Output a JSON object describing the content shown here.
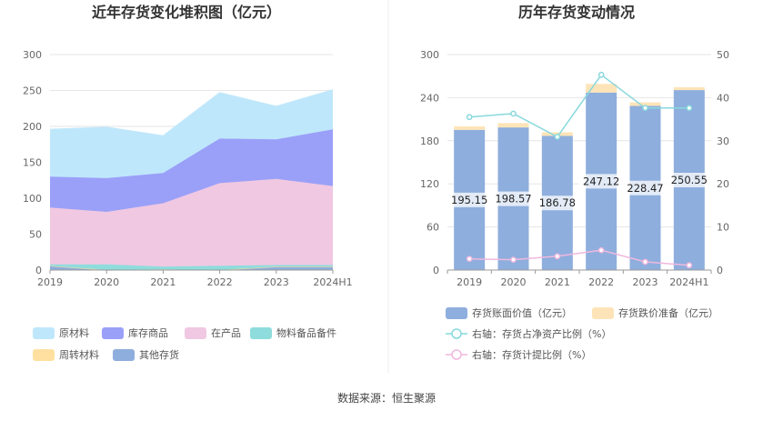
{
  "chart_data": [
    {
      "type": "area",
      "title": "近年存货变化堆积图（亿元）",
      "categories": [
        "2019",
        "2020",
        "2021",
        "2022",
        "2023",
        "2024H1"
      ],
      "ylim": [
        0,
        300
      ],
      "yticks": [
        0,
        50,
        100,
        150,
        200,
        250,
        300
      ],
      "grid": true,
      "legend_position": "bottom-left",
      "series": [
        {
          "name": "其他存货",
          "color": "#8eaedd",
          "values": [
            6,
            0,
            1,
            0,
            5,
            5
          ]
        },
        {
          "name": "周转材料",
          "color": "#ffe0a0",
          "values": [
            0,
            0,
            0,
            0,
            0,
            0
          ]
        },
        {
          "name": "物料备品备件",
          "color": "#8fdcdc",
          "values": [
            2,
            8,
            4,
            6,
            2,
            2
          ]
        },
        {
          "name": "在产品",
          "color": "#f0c8e2",
          "values": [
            79,
            73,
            88,
            115,
            120,
            110
          ]
        },
        {
          "name": "库存商品",
          "color": "#9aa0f8",
          "values": [
            43,
            47,
            42,
            62,
            55,
            79
          ]
        },
        {
          "name": "原材料",
          "color": "#bfe7fb",
          "values": [
            66,
            71,
            52,
            64,
            46,
            55
          ]
        }
      ],
      "legend": [
        "原材料",
        "库存商品",
        "在产品",
        "物料备品备件",
        "周转材料",
        "其他存货"
      ]
    },
    {
      "type": "bar",
      "title": "历年存货变动情况",
      "categories": [
        "2019",
        "2020",
        "2021",
        "2022",
        "2023",
        "2024H1"
      ],
      "ylim": [
        0,
        300
      ],
      "yticks": [
        0,
        60,
        120,
        180,
        240,
        300
      ],
      "y2lim": [
        0,
        50
      ],
      "y2ticks": [
        0,
        10,
        20,
        30,
        40,
        50
      ],
      "grid": true,
      "legend_position": "bottom",
      "series": [
        {
          "name": "存货账面价值（亿元）",
          "color": "#8eaedd",
          "values": [
            195.15,
            198.57,
            186.78,
            247.12,
            228.47,
            250.55
          ],
          "labels": [
            "195.15",
            "198.57",
            "186.78",
            "247.12",
            "228.47",
            "250.55"
          ]
        },
        {
          "name": "存货跌价准备（亿元）",
          "color": "#fde4b8",
          "values": [
            5,
            6,
            5,
            12,
            5,
            4
          ]
        },
        {
          "name": "右轴：存货占净资产比例（%）",
          "color": "#88d8dc",
          "axis": "right",
          "values": [
            35.5,
            36.3,
            30.9,
            45.3,
            37.6,
            37.6
          ]
        },
        {
          "name": "右轴：存货计提比例（%）",
          "color": "#f0b8de",
          "axis": "right",
          "values": [
            2.6,
            2.4,
            3.2,
            4.6,
            1.9,
            1.1
          ]
        }
      ]
    }
  ],
  "source": "数据来源：恒生聚源"
}
